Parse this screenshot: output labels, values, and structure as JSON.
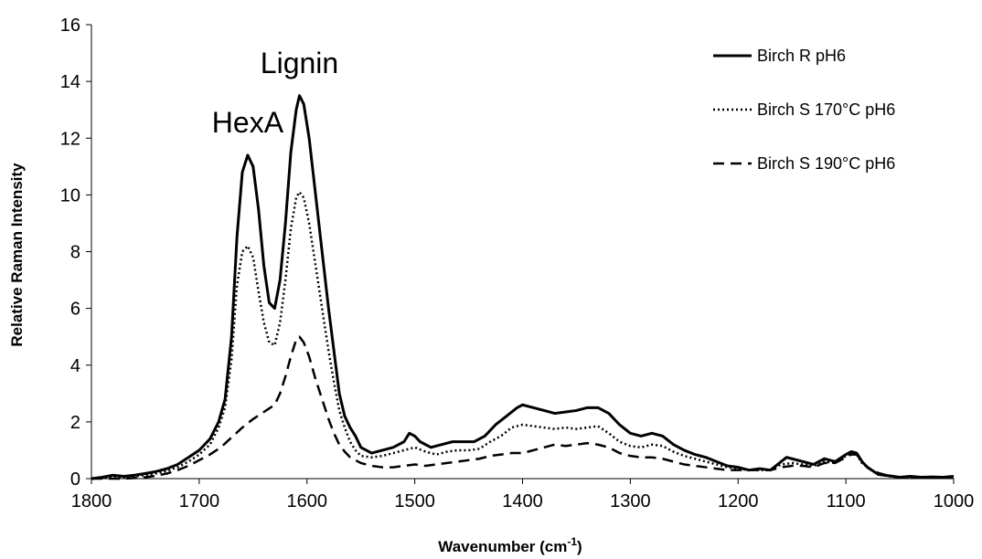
{
  "chart_data": {
    "type": "line",
    "xlabel": "Wavenumber (cm",
    "xlabel_sup": "-1",
    "xlabel_close": ")",
    "ylabel": "Relative Raman Intensity",
    "xlim": [
      1800,
      1000
    ],
    "ylim": [
      0,
      16
    ],
    "x_reversed": true,
    "x_ticks": [
      1800,
      1700,
      1600,
      1500,
      1400,
      1300,
      1200,
      1100,
      1000
    ],
    "y_ticks": [
      0,
      2,
      4,
      6,
      8,
      10,
      12,
      14,
      16
    ],
    "grid": false,
    "legend_position": "top-right",
    "annotations": [
      {
        "text": "HexA",
        "x": 1655,
        "y": 12.2
      },
      {
        "text": "Lignin",
        "x": 1607,
        "y": 14.3
      }
    ],
    "series": [
      {
        "name": "Birch R pH6",
        "style": "solid",
        "color": "#000000",
        "points": [
          [
            1800,
            0.0
          ],
          [
            1790,
            0.05
          ],
          [
            1780,
            0.12
          ],
          [
            1770,
            0.08
          ],
          [
            1760,
            0.12
          ],
          [
            1750,
            0.18
          ],
          [
            1740,
            0.25
          ],
          [
            1730,
            0.35
          ],
          [
            1720,
            0.5
          ],
          [
            1710,
            0.75
          ],
          [
            1700,
            1.0
          ],
          [
            1690,
            1.4
          ],
          [
            1682,
            2.0
          ],
          [
            1676,
            2.8
          ],
          [
            1670,
            5.0
          ],
          [
            1665,
            8.5
          ],
          [
            1660,
            10.8
          ],
          [
            1655,
            11.4
          ],
          [
            1650,
            11.0
          ],
          [
            1645,
            9.5
          ],
          [
            1640,
            7.5
          ],
          [
            1635,
            6.2
          ],
          [
            1630,
            6.0
          ],
          [
            1625,
            7.0
          ],
          [
            1620,
            9.0
          ],
          [
            1615,
            11.5
          ],
          [
            1610,
            13.0
          ],
          [
            1607,
            13.5
          ],
          [
            1603,
            13.2
          ],
          [
            1598,
            12.0
          ],
          [
            1592,
            10.0
          ],
          [
            1586,
            8.0
          ],
          [
            1580,
            6.0
          ],
          [
            1575,
            4.5
          ],
          [
            1570,
            3.0
          ],
          [
            1565,
            2.2
          ],
          [
            1560,
            1.8
          ],
          [
            1555,
            1.5
          ],
          [
            1550,
            1.1
          ],
          [
            1545,
            1.0
          ],
          [
            1540,
            0.9
          ],
          [
            1530,
            1.0
          ],
          [
            1520,
            1.1
          ],
          [
            1510,
            1.3
          ],
          [
            1505,
            1.6
          ],
          [
            1500,
            1.5
          ],
          [
            1495,
            1.3
          ],
          [
            1485,
            1.1
          ],
          [
            1475,
            1.2
          ],
          [
            1465,
            1.3
          ],
          [
            1455,
            1.3
          ],
          [
            1445,
            1.3
          ],
          [
            1435,
            1.5
          ],
          [
            1425,
            1.9
          ],
          [
            1415,
            2.2
          ],
          [
            1405,
            2.5
          ],
          [
            1400,
            2.6
          ],
          [
            1390,
            2.5
          ],
          [
            1380,
            2.4
          ],
          [
            1370,
            2.3
          ],
          [
            1360,
            2.35
          ],
          [
            1350,
            2.4
          ],
          [
            1340,
            2.5
          ],
          [
            1330,
            2.5
          ],
          [
            1320,
            2.3
          ],
          [
            1310,
            1.9
          ],
          [
            1300,
            1.6
          ],
          [
            1290,
            1.5
          ],
          [
            1280,
            1.6
          ],
          [
            1270,
            1.5
          ],
          [
            1260,
            1.2
          ],
          [
            1250,
            1.0
          ],
          [
            1240,
            0.85
          ],
          [
            1230,
            0.75
          ],
          [
            1220,
            0.6
          ],
          [
            1210,
            0.45
          ],
          [
            1200,
            0.4
          ],
          [
            1190,
            0.3
          ],
          [
            1180,
            0.35
          ],
          [
            1170,
            0.3
          ],
          [
            1160,
            0.6
          ],
          [
            1155,
            0.75
          ],
          [
            1150,
            0.7
          ],
          [
            1140,
            0.6
          ],
          [
            1130,
            0.5
          ],
          [
            1120,
            0.7
          ],
          [
            1110,
            0.6
          ],
          [
            1100,
            0.85
          ],
          [
            1095,
            0.95
          ],
          [
            1090,
            0.9
          ],
          [
            1085,
            0.6
          ],
          [
            1080,
            0.4
          ],
          [
            1070,
            0.15
          ],
          [
            1060,
            0.1
          ],
          [
            1050,
            0.05
          ],
          [
            1040,
            0.08
          ],
          [
            1030,
            0.05
          ],
          [
            1020,
            0.06
          ],
          [
            1010,
            0.05
          ],
          [
            1000,
            0.08
          ]
        ]
      },
      {
        "name": "Birch S 170°C pH6",
        "style": "dotted",
        "color": "#000000",
        "points": [
          [
            1800,
            0.0
          ],
          [
            1790,
            0.03
          ],
          [
            1780,
            0.06
          ],
          [
            1770,
            0.05
          ],
          [
            1760,
            0.08
          ],
          [
            1750,
            0.12
          ],
          [
            1740,
            0.18
          ],
          [
            1730,
            0.28
          ],
          [
            1720,
            0.4
          ],
          [
            1710,
            0.6
          ],
          [
            1700,
            0.85
          ],
          [
            1690,
            1.2
          ],
          [
            1682,
            1.8
          ],
          [
            1676,
            2.5
          ],
          [
            1670,
            4.2
          ],
          [
            1665,
            6.8
          ],
          [
            1660,
            8.0
          ],
          [
            1655,
            8.2
          ],
          [
            1650,
            7.8
          ],
          [
            1645,
            6.6
          ],
          [
            1640,
            5.5
          ],
          [
            1635,
            4.8
          ],
          [
            1630,
            4.7
          ],
          [
            1625,
            5.5
          ],
          [
            1620,
            7.0
          ],
          [
            1615,
            8.8
          ],
          [
            1610,
            9.9
          ],
          [
            1607,
            10.1
          ],
          [
            1603,
            9.9
          ],
          [
            1598,
            9.0
          ],
          [
            1592,
            7.5
          ],
          [
            1586,
            6.0
          ],
          [
            1580,
            4.5
          ],
          [
            1575,
            3.4
          ],
          [
            1570,
            2.4
          ],
          [
            1565,
            1.8
          ],
          [
            1560,
            1.3
          ],
          [
            1555,
            1.0
          ],
          [
            1550,
            0.8
          ],
          [
            1540,
            0.75
          ],
          [
            1530,
            0.8
          ],
          [
            1520,
            0.9
          ],
          [
            1510,
            1.0
          ],
          [
            1500,
            1.1
          ],
          [
            1490,
            0.95
          ],
          [
            1480,
            0.85
          ],
          [
            1470,
            0.95
          ],
          [
            1460,
            1.0
          ],
          [
            1450,
            1.0
          ],
          [
            1440,
            1.05
          ],
          [
            1430,
            1.3
          ],
          [
            1420,
            1.5
          ],
          [
            1410,
            1.8
          ],
          [
            1400,
            1.9
          ],
          [
            1390,
            1.85
          ],
          [
            1380,
            1.8
          ],
          [
            1370,
            1.75
          ],
          [
            1360,
            1.8
          ],
          [
            1350,
            1.75
          ],
          [
            1340,
            1.8
          ],
          [
            1330,
            1.85
          ],
          [
            1320,
            1.6
          ],
          [
            1310,
            1.3
          ],
          [
            1300,
            1.15
          ],
          [
            1290,
            1.1
          ],
          [
            1280,
            1.2
          ],
          [
            1270,
            1.15
          ],
          [
            1260,
            0.95
          ],
          [
            1250,
            0.8
          ],
          [
            1240,
            0.7
          ],
          [
            1230,
            0.6
          ],
          [
            1220,
            0.5
          ],
          [
            1210,
            0.4
          ],
          [
            1200,
            0.35
          ],
          [
            1190,
            0.3
          ],
          [
            1180,
            0.3
          ],
          [
            1170,
            0.3
          ],
          [
            1160,
            0.5
          ],
          [
            1150,
            0.55
          ],
          [
            1140,
            0.5
          ],
          [
            1130,
            0.45
          ],
          [
            1120,
            0.6
          ],
          [
            1110,
            0.55
          ],
          [
            1100,
            0.8
          ],
          [
            1095,
            0.9
          ],
          [
            1090,
            0.85
          ],
          [
            1085,
            0.55
          ],
          [
            1080,
            0.4
          ],
          [
            1070,
            0.15
          ],
          [
            1060,
            0.08
          ],
          [
            1050,
            0.05
          ],
          [
            1040,
            0.06
          ],
          [
            1030,
            0.04
          ],
          [
            1020,
            0.05
          ],
          [
            1010,
            0.04
          ],
          [
            1000,
            0.06
          ]
        ]
      },
      {
        "name": "Birch S 190°C pH6",
        "style": "dashed",
        "color": "#000000",
        "points": [
          [
            1800,
            0.0
          ],
          [
            1790,
            0.0
          ],
          [
            1780,
            0.0
          ],
          [
            1770,
            0.0
          ],
          [
            1760,
            0.02
          ],
          [
            1750,
            0.05
          ],
          [
            1740,
            0.1
          ],
          [
            1730,
            0.18
          ],
          [
            1720,
            0.3
          ],
          [
            1710,
            0.45
          ],
          [
            1700,
            0.65
          ],
          [
            1690,
            0.85
          ],
          [
            1680,
            1.1
          ],
          [
            1670,
            1.45
          ],
          [
            1660,
            1.8
          ],
          [
            1650,
            2.1
          ],
          [
            1640,
            2.35
          ],
          [
            1630,
            2.6
          ],
          [
            1625,
            3.0
          ],
          [
            1620,
            3.6
          ],
          [
            1615,
            4.3
          ],
          [
            1610,
            4.9
          ],
          [
            1607,
            5.0
          ],
          [
            1603,
            4.8
          ],
          [
            1598,
            4.3
          ],
          [
            1592,
            3.5
          ],
          [
            1586,
            2.8
          ],
          [
            1580,
            2.1
          ],
          [
            1575,
            1.6
          ],
          [
            1570,
            1.2
          ],
          [
            1565,
            0.95
          ],
          [
            1560,
            0.75
          ],
          [
            1550,
            0.55
          ],
          [
            1540,
            0.45
          ],
          [
            1530,
            0.4
          ],
          [
            1520,
            0.4
          ],
          [
            1510,
            0.45
          ],
          [
            1500,
            0.5
          ],
          [
            1490,
            0.45
          ],
          [
            1480,
            0.5
          ],
          [
            1470,
            0.55
          ],
          [
            1460,
            0.6
          ],
          [
            1450,
            0.65
          ],
          [
            1440,
            0.7
          ],
          [
            1430,
            0.8
          ],
          [
            1420,
            0.85
          ],
          [
            1410,
            0.9
          ],
          [
            1400,
            0.9
          ],
          [
            1390,
            1.0
          ],
          [
            1380,
            1.1
          ],
          [
            1370,
            1.2
          ],
          [
            1360,
            1.15
          ],
          [
            1350,
            1.2
          ],
          [
            1340,
            1.25
          ],
          [
            1330,
            1.2
          ],
          [
            1320,
            1.1
          ],
          [
            1310,
            0.9
          ],
          [
            1300,
            0.8
          ],
          [
            1290,
            0.75
          ],
          [
            1280,
            0.75
          ],
          [
            1270,
            0.7
          ],
          [
            1260,
            0.6
          ],
          [
            1250,
            0.5
          ],
          [
            1240,
            0.45
          ],
          [
            1230,
            0.4
          ],
          [
            1220,
            0.35
          ],
          [
            1210,
            0.3
          ],
          [
            1200,
            0.3
          ],
          [
            1190,
            0.3
          ],
          [
            1180,
            0.3
          ],
          [
            1170,
            0.3
          ],
          [
            1160,
            0.4
          ],
          [
            1150,
            0.45
          ],
          [
            1140,
            0.45
          ],
          [
            1130,
            0.4
          ],
          [
            1120,
            0.55
          ],
          [
            1110,
            0.55
          ],
          [
            1100,
            0.75
          ],
          [
            1095,
            0.85
          ],
          [
            1090,
            0.85
          ],
          [
            1085,
            0.6
          ],
          [
            1080,
            0.4
          ],
          [
            1070,
            0.2
          ],
          [
            1060,
            0.1
          ],
          [
            1050,
            0.05
          ],
          [
            1040,
            0.05
          ],
          [
            1030,
            0.05
          ],
          [
            1020,
            0.05
          ],
          [
            1010,
            0.05
          ],
          [
            1000,
            0.05
          ]
        ]
      }
    ]
  }
}
